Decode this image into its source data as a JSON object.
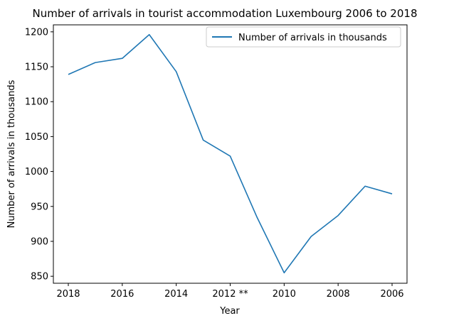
{
  "chart_data": {
    "type": "line",
    "title": "Number of arrivals in tourist accommodation Luxembourg 2006 to 2018",
    "xlabel": "Year",
    "ylabel": "Number of arrivals in thousands",
    "categories": [
      "2018",
      "2017",
      "2016",
      "2015",
      "2014",
      "2013",
      "2012 **",
      "2011",
      "2010",
      "2009",
      "2008",
      "2007",
      "2006"
    ],
    "x_tick_labels": [
      "2018",
      "2016",
      "2014",
      "2012 **",
      "2010",
      "2008",
      "2006"
    ],
    "series": [
      {
        "name": "Number of arrivals in thousands",
        "color": "#1f77b4",
        "values": [
          1139,
          1156,
          1162,
          1196,
          1143,
          1045,
          1022,
          934,
          855,
          907,
          937,
          979,
          968
        ]
      }
    ],
    "ylim": [
      840,
      1210
    ],
    "y_ticks": [
      850,
      900,
      950,
      1000,
      1050,
      1100,
      1150,
      1200
    ],
    "grid": false,
    "legend_position": "top-right"
  }
}
